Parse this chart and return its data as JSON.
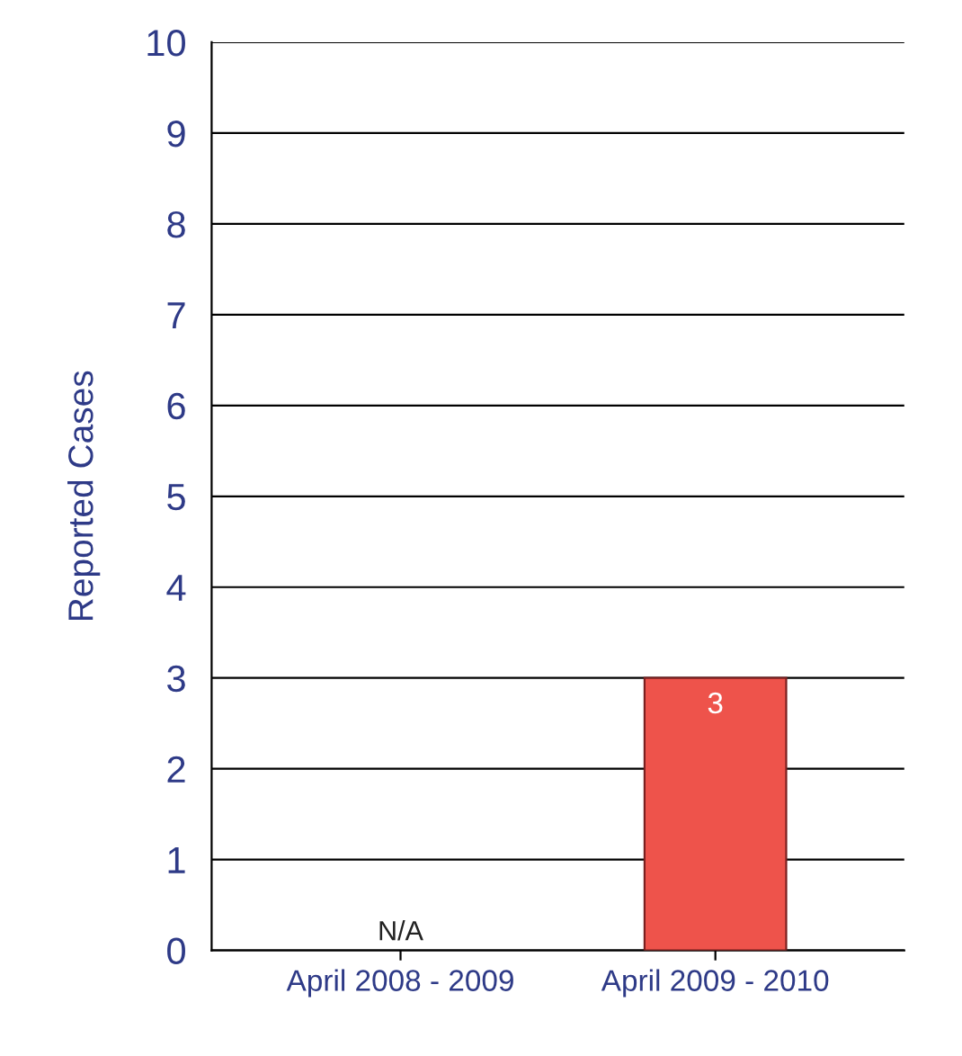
{
  "chart_data": {
    "type": "bar",
    "ylabel": "Reported Cases",
    "categories": [
      "April 2008 - 2009",
      "April 2009 - 2010"
    ],
    "values": [
      null,
      3
    ],
    "color": "#ee534b",
    "value_labels": [
      "N/A",
      "3"
    ],
    "ylim": [
      0,
      10
    ],
    "yticks": [
      0,
      1,
      2,
      3,
      4,
      5,
      6,
      7,
      8,
      9,
      10
    ],
    "grid": "y"
  }
}
